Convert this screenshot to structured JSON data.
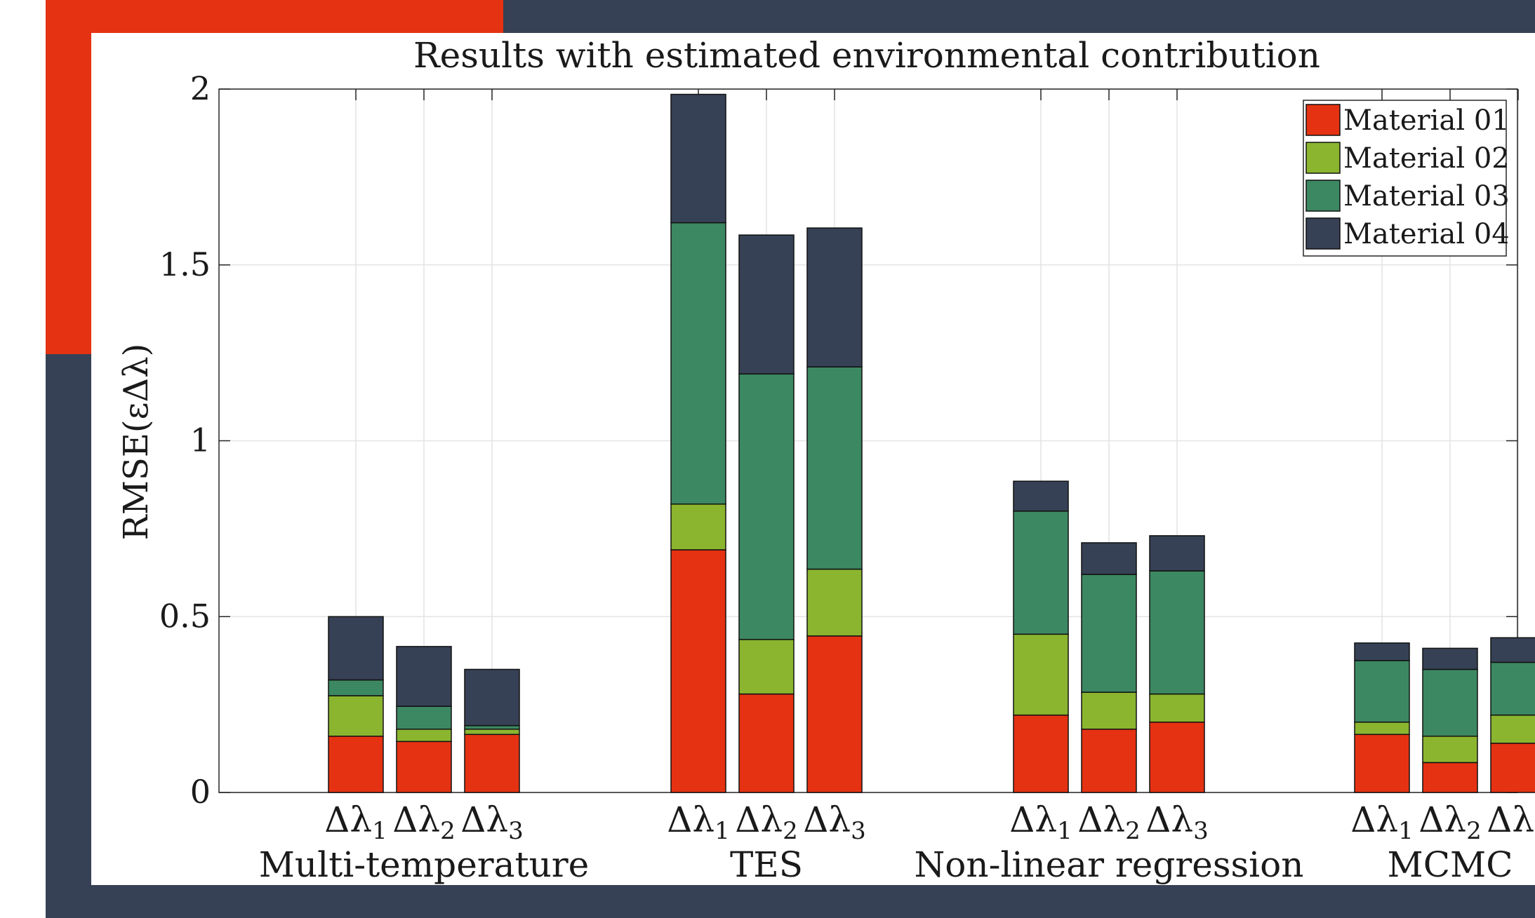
{
  "colors": {
    "frame_red": "#E53212",
    "frame_navy": "#364155",
    "material_01": "#E53212",
    "material_02": "#8BB52F",
    "material_03": "#3C8862",
    "material_04": "#364155"
  },
  "chart_data": {
    "type": "bar",
    "stacked": true,
    "title": "Results with estimated environmental contribution",
    "ylabel": "RMSE(εΔλ)",
    "xlabel": "",
    "ylim": [
      0,
      2
    ],
    "yticks": [
      0,
      0.5,
      1,
      1.5,
      2
    ],
    "ytick_labels": [
      "0",
      "0.5",
      "1",
      "1.5",
      "2"
    ],
    "grid": true,
    "legend_position": "top-right",
    "groups": [
      "Multi-temperature",
      "TES",
      "Non-linear regression",
      "MCMC"
    ],
    "bar_labels": [
      "Δλ1",
      "Δλ2",
      "Δλ3"
    ],
    "series": [
      {
        "name": "Material 01",
        "values": [
          [
            0.16,
            0.145,
            0.165
          ],
          [
            0.69,
            0.28,
            0.445
          ],
          [
            0.22,
            0.18,
            0.2
          ],
          [
            0.165,
            0.085,
            0.14
          ]
        ]
      },
      {
        "name": "Material 02",
        "values": [
          [
            0.115,
            0.035,
            0.015
          ],
          [
            0.13,
            0.155,
            0.19
          ],
          [
            0.23,
            0.105,
            0.08
          ],
          [
            0.035,
            0.075,
            0.08
          ]
        ]
      },
      {
        "name": "Material 03",
        "values": [
          [
            0.045,
            0.065,
            0.01
          ],
          [
            0.8,
            0.755,
            0.575
          ],
          [
            0.35,
            0.335,
            0.35
          ],
          [
            0.175,
            0.19,
            0.15
          ]
        ]
      },
      {
        "name": "Material 04",
        "values": [
          [
            0.18,
            0.17,
            0.16
          ],
          [
            0.365,
            0.395,
            0.395
          ],
          [
            0.085,
            0.09,
            0.1
          ],
          [
            0.05,
            0.06,
            0.07
          ]
        ]
      }
    ]
  }
}
